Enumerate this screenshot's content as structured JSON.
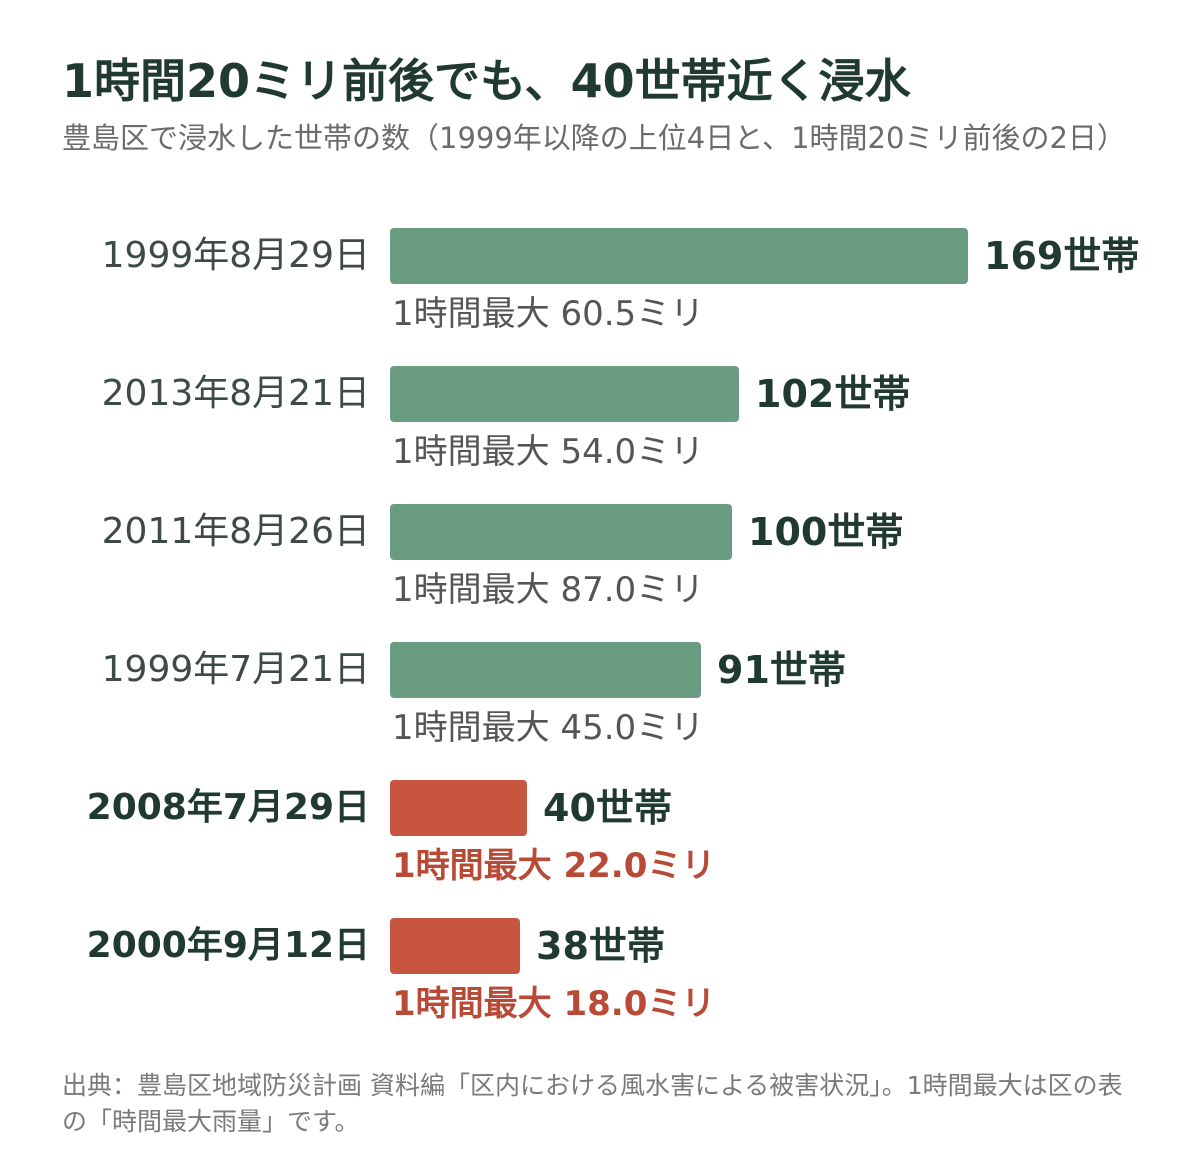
{
  "title": "1時間20ミリ前後でも、40世帯近く浸水",
  "subtitle": "豊島区で浸水した世帯の数（1999年以降の上位4日と、1時間20ミリ前後の2日）",
  "footnote": "出典：豊島区地域防災計画 資料編「区内における風水害による被害状況」。1時間最大は区の表の「時間最大雨量」です。",
  "colors": {
    "normal": "#6a9c82",
    "highlight": "#c8553f",
    "highlight_text": "#b94a36"
  },
  "chart_data": {
    "type": "bar",
    "orientation": "horizontal",
    "title": "1時間20ミリ前後でも、40世帯近く浸水",
    "subtitle": "豊島区で浸水した世帯の数（1999年以降の上位4日と、1時間20ミリ前後の2日）",
    "unit": "世帯",
    "categories": [
      "1999年8月29日",
      "2013年8月21日",
      "2011年8月26日",
      "1999年7月21日",
      "2008年7月29日",
      "2000年9月12日"
    ],
    "values": [
      169,
      102,
      100,
      91,
      40,
      38
    ],
    "value_labels": [
      "169世帯",
      "102世帯",
      "100世帯",
      "91世帯",
      "40世帯",
      "38世帯"
    ],
    "rain_labels": [
      "1時間最大 60.5ミリ",
      "1時間最大 54.0ミリ",
      "1時間最大 87.0ミリ",
      "1時間最大 45.0ミリ",
      "1時間最大 22.0ミリ",
      "1時間最大 18.0ミリ"
    ],
    "highlighted": [
      false,
      false,
      false,
      false,
      true,
      true
    ],
    "xlim": [
      0,
      169
    ],
    "grid": false
  }
}
